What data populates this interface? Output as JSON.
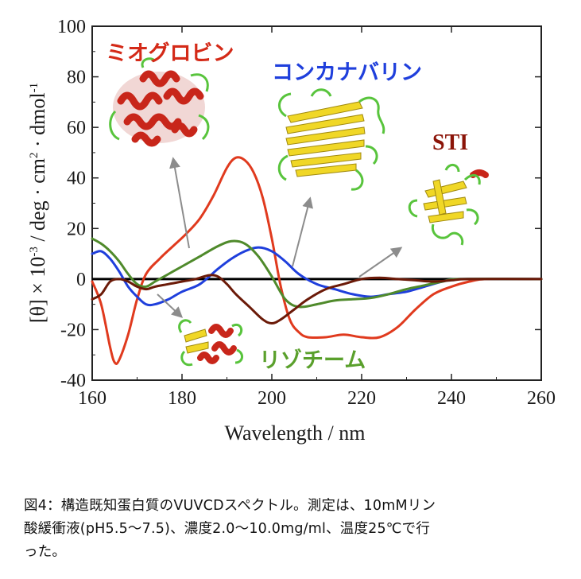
{
  "chart_data": {
    "type": "line",
    "xlabel": "Wavelength / nm",
    "ylabel_prefix": "[θ] × 10",
    "ylabel_exponent": "-3",
    "ylabel_units": " / deg · cm",
    "ylabel_cm_exp": "2",
    "ylabel_units2": " · dmol",
    "ylabel_dmol_exp": "-1",
    "xlim": [
      160,
      260
    ],
    "ylim": [
      -40,
      100
    ],
    "x_ticks": [
      160,
      180,
      200,
      220,
      240,
      260
    ],
    "y_ticks": [
      -40,
      -20,
      0,
      20,
      40,
      60,
      80,
      100
    ],
    "series": [
      {
        "name": "ミオグロビン",
        "color": "#e03a1e",
        "points": [
          [
            160,
            -1
          ],
          [
            162,
            -10
          ],
          [
            164,
            -27
          ],
          [
            165,
            -33
          ],
          [
            166,
            -32
          ],
          [
            168,
            -22
          ],
          [
            170,
            -8
          ],
          [
            172,
            2
          ],
          [
            175,
            8
          ],
          [
            178,
            13
          ],
          [
            181,
            18
          ],
          [
            184,
            24
          ],
          [
            187,
            33
          ],
          [
            190,
            44
          ],
          [
            192,
            48
          ],
          [
            194,
            47
          ],
          [
            196,
            42
          ],
          [
            198,
            32
          ],
          [
            200,
            16
          ],
          [
            202,
            -3
          ],
          [
            204,
            -16
          ],
          [
            206,
            -21
          ],
          [
            208,
            -23
          ],
          [
            212,
            -23
          ],
          [
            216,
            -22
          ],
          [
            220,
            -23
          ],
          [
            224,
            -23
          ],
          [
            228,
            -19
          ],
          [
            232,
            -12
          ],
          [
            236,
            -6
          ],
          [
            240,
            -3
          ],
          [
            244,
            -1
          ],
          [
            248,
            0
          ],
          [
            260,
            0
          ]
        ]
      },
      {
        "name": "コンカナバリン",
        "color": "#1f3fdc",
        "points": [
          [
            160,
            10
          ],
          [
            162,
            11
          ],
          [
            164,
            8
          ],
          [
            166,
            3
          ],
          [
            168,
            -3
          ],
          [
            170,
            -7
          ],
          [
            172,
            -10
          ],
          [
            174,
            -10
          ],
          [
            177,
            -8
          ],
          [
            180,
            -5
          ],
          [
            184,
            -2
          ],
          [
            188,
            4
          ],
          [
            191,
            8
          ],
          [
            194,
            11
          ],
          [
            197,
            12.5
          ],
          [
            200,
            11
          ],
          [
            203,
            7
          ],
          [
            206,
            2
          ],
          [
            210,
            -2
          ],
          [
            214,
            -4
          ],
          [
            218,
            -6
          ],
          [
            222,
            -7
          ],
          [
            226,
            -6
          ],
          [
            230,
            -5
          ],
          [
            234,
            -3
          ],
          [
            238,
            -1
          ],
          [
            242,
            0
          ],
          [
            260,
            0
          ]
        ]
      },
      {
        "name": "リゾチーム",
        "color": "#4f8a2b",
        "points": [
          [
            160,
            16
          ],
          [
            162,
            14
          ],
          [
            164,
            11
          ],
          [
            166,
            7
          ],
          [
            168,
            2
          ],
          [
            170,
            -2
          ],
          [
            172,
            -3
          ],
          [
            174,
            -1
          ],
          [
            177,
            2
          ],
          [
            180,
            5
          ],
          [
            184,
            9
          ],
          [
            188,
            13
          ],
          [
            191,
            15
          ],
          [
            194,
            14
          ],
          [
            197,
            9
          ],
          [
            200,
            1
          ],
          [
            203,
            -8
          ],
          [
            206,
            -11
          ],
          [
            210,
            -10
          ],
          [
            214,
            -8.5
          ],
          [
            218,
            -8
          ],
          [
            222,
            -7.5
          ],
          [
            226,
            -6
          ],
          [
            230,
            -4
          ],
          [
            234,
            -2.5
          ],
          [
            238,
            -1
          ],
          [
            242,
            0
          ],
          [
            260,
            0
          ]
        ]
      },
      {
        "name": "STI",
        "color": "#6b1a08",
        "points": [
          [
            160,
            -8
          ],
          [
            162,
            -6
          ],
          [
            164,
            -1
          ],
          [
            166,
            0
          ],
          [
            168,
            -1
          ],
          [
            170,
            -3
          ],
          [
            172,
            -4
          ],
          [
            174,
            -3
          ],
          [
            177,
            -2
          ],
          [
            180,
            -1
          ],
          [
            183,
            0
          ],
          [
            186,
            1.5
          ],
          [
            188,
            1
          ],
          [
            190,
            -2
          ],
          [
            192,
            -6
          ],
          [
            195,
            -11
          ],
          [
            198,
            -16
          ],
          [
            200,
            -17.5
          ],
          [
            202,
            -16
          ],
          [
            205,
            -12
          ],
          [
            208,
            -8
          ],
          [
            212,
            -4
          ],
          [
            216,
            -2
          ],
          [
            220,
            0
          ],
          [
            224,
            0.5
          ],
          [
            228,
            0
          ],
          [
            232,
            -0.5
          ],
          [
            236,
            -1
          ],
          [
            240,
            -0.5
          ],
          [
            244,
            0
          ],
          [
            260,
            0
          ]
        ]
      }
    ],
    "zero_line": {
      "y": 0,
      "color": "#000000"
    },
    "annotations": [
      {
        "series": "ミオグロビン",
        "text": "ミオグロビン",
        "color": "#d42a18"
      },
      {
        "series": "コンカナバリン",
        "text": "コンカナバリン",
        "color": "#1f3fdc"
      },
      {
        "series": "STI",
        "text": "STI",
        "color": "#8b1408"
      },
      {
        "series": "リゾチーム",
        "text": "リゾチーム",
        "color": "#5aa02c"
      }
    ],
    "arrow_color": "#8c8c8c"
  },
  "caption": {
    "lines": [
      "図4：構造既知蛋白質のVUVCDスペクトル。測定は、10mMリン",
      "酸緩衝液(pH5.5～7.5)、濃度2.0～10.0mg/ml、温度25℃で行",
      "った。"
    ]
  },
  "structure_colors": {
    "helix": "#c8261a",
    "sheet": "#f0d726",
    "coil": "#58c43c"
  }
}
